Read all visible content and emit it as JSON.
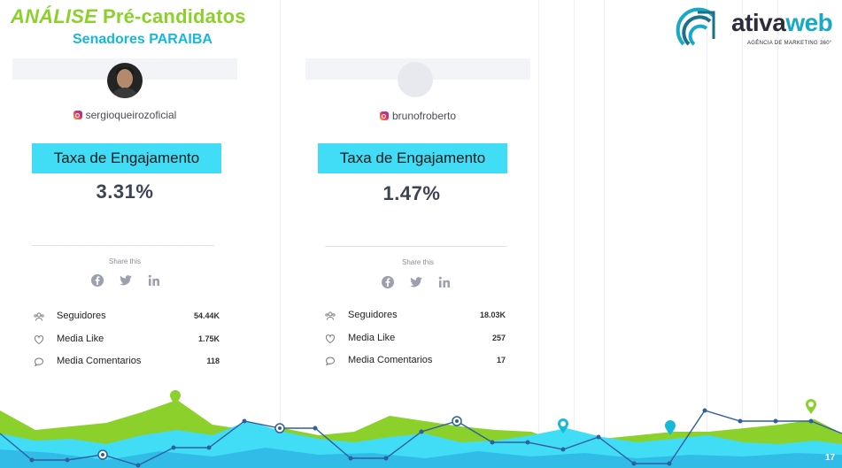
{
  "header": {
    "title_word1": "ANÁLISE",
    "title_word2": "Pré-candidatos",
    "subtitle": "Senadores PARAIBA"
  },
  "logo": {
    "name_part1": "ativa",
    "name_part2": "web",
    "tagline": "AGÊNCIA DE MARKETING 360°"
  },
  "cards": [
    {
      "handle": "sergioqueirozoficial",
      "engagement_label": "Taxa de Engajamento",
      "engagement_rate": "3.31%",
      "share_label": "Share this",
      "stats": [
        {
          "label": "Seguidores",
          "value": "54.44K",
          "icon": "followers-icon"
        },
        {
          "label": "Media Like",
          "value": "1.75K",
          "icon": "heart-icon"
        },
        {
          "label": "Media Comentarios",
          "value": "118",
          "icon": "comment-icon"
        }
      ]
    },
    {
      "handle": "brunofroberto",
      "engagement_label": "Taxa de Engajamento",
      "engagement_rate": "1.47%",
      "share_label": "Share this",
      "stats": [
        {
          "label": "Seguidores",
          "value": "18.03K",
          "icon": "followers-icon"
        },
        {
          "label": "Media Like",
          "value": "257",
          "icon": "heart-icon"
        },
        {
          "label": "Media Comentarios",
          "value": "17",
          "icon": "comment-icon"
        }
      ]
    }
  ],
  "page_number": "17",
  "colors": {
    "lime": "#8cd12b",
    "cyan": "#41ddf6",
    "teal": "#17b8d9",
    "navy": "#2f5f9c"
  }
}
